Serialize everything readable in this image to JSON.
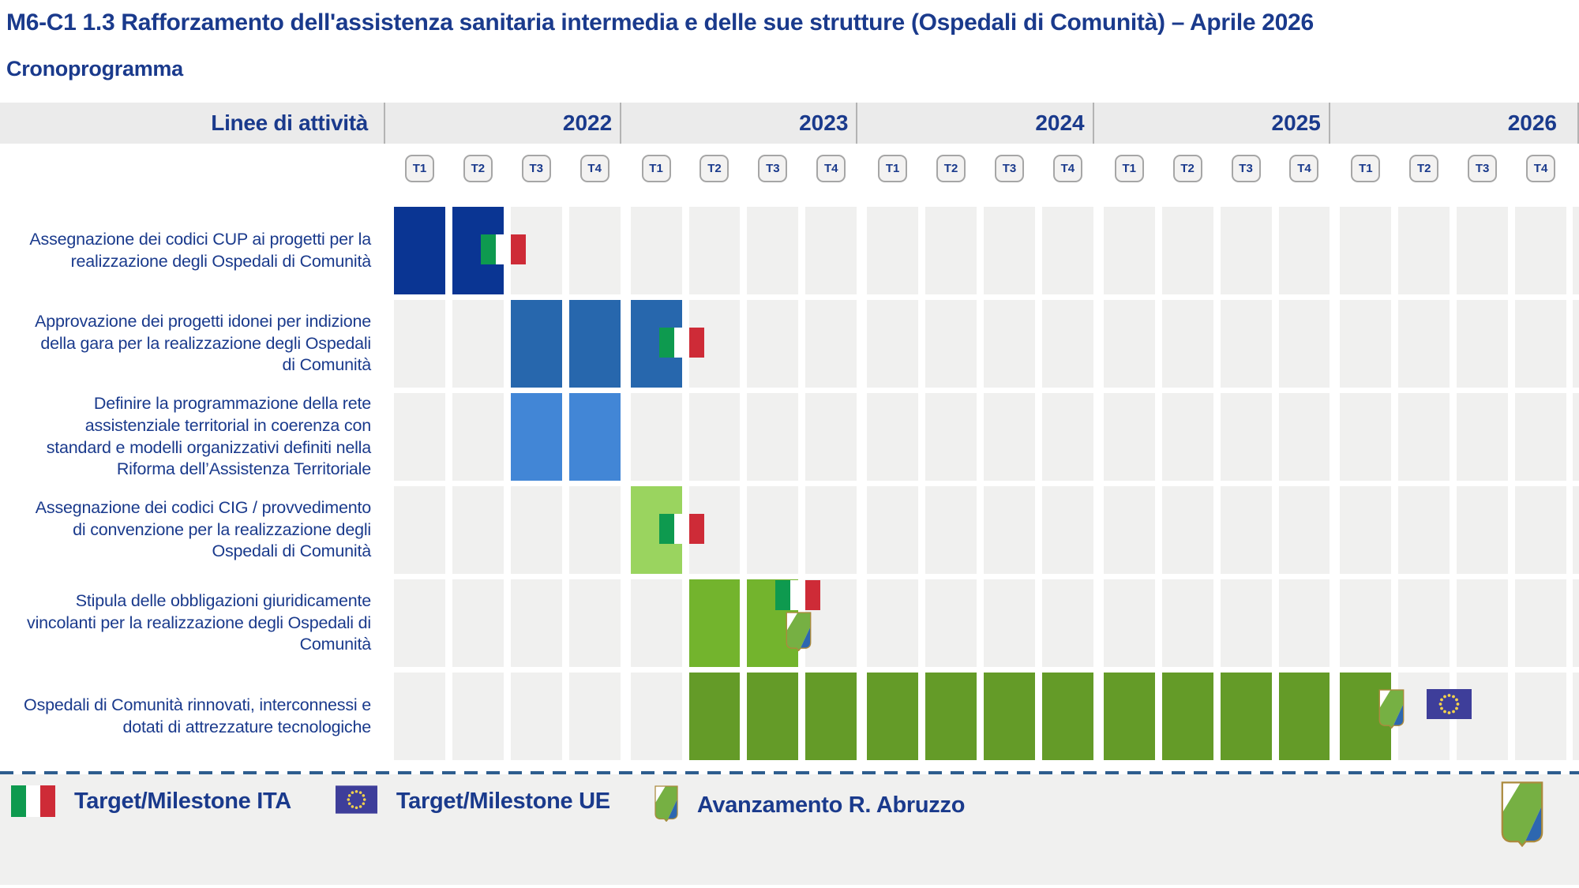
{
  "title": "M6-C1 1.3 Rafforzamento dell'assistenza sanitaria intermedia e delle sue strutture (Ospedali di Comunità) – Aprile 2026",
  "subtitle": "Cronoprogramma",
  "table": {
    "corner_label": "Linee di attività",
    "years": [
      "2022",
      "2023",
      "2024",
      "2025",
      "2026"
    ],
    "quarters": [
      "T1",
      "T2",
      "T3",
      "T4"
    ]
  },
  "legend": {
    "items": [
      {
        "icon": "italy-flag-icon",
        "label": "Target/Milestone ITA"
      },
      {
        "icon": "eu-flag-icon",
        "label": "Target/Milestone UE"
      },
      {
        "icon": "abruzzo-progress-icon",
        "label": "Avanzamento R. Abruzzo"
      }
    ],
    "corner_logo": "abruzzo-coat-of-arms"
  },
  "colors": {
    "text_navy": "#1a3a8c",
    "empty_cell": "#f0f0ef",
    "header_band": "#ebebeb",
    "separator_dash": "#2d5d8e",
    "italy_green": "#0e9a4f",
    "italy_red": "#ce2b37",
    "eu_blue": "#3e3e9a",
    "eu_star_yellow": "#f5d34b",
    "abruzzo_green": "#76b043",
    "abruzzo_blue": "#2d67b0"
  },
  "chart_data": {
    "type": "gantt",
    "title": "Cronoprogramma",
    "x_years": [
      "2022",
      "2023",
      "2024",
      "2025",
      "2026"
    ],
    "x_quarters_per_year": [
      "T1",
      "T2",
      "T3",
      "T4"
    ],
    "milestone_types": {
      "ITA": "Target/Milestone ITA",
      "UE": "Target/Milestone UE",
      "ABR": "Avanzamento R. Abruzzo"
    },
    "rows": [
      {
        "label": "Assegnazione dei codici CUP ai progetti per la realizzazione degli Ospedali di Comunità",
        "color": "#0a3593",
        "active_quarters": [
          "2022-T1",
          "2022-T2"
        ],
        "milestones": [
          {
            "type": "ITA",
            "at_end_of": "2022-T2",
            "valign": "middle"
          }
        ]
      },
      {
        "label": "Approvazione dei progetti idonei per indizione della gara per la realizzazione degli Ospedali di Comunità",
        "color": "#2767ad",
        "active_quarters": [
          "2022-T3",
          "2022-T4",
          "2023-T1"
        ],
        "milestones": [
          {
            "type": "ITA",
            "at_end_of": "2023-T1",
            "valign": "middle"
          }
        ]
      },
      {
        "label": "Definire la programmazione della rete assistenziale territorial in coerenza con standard e modelli organizzativi definiti nella Riforma dell’Assistenza Territoriale",
        "color": "#4286d6",
        "active_quarters": [
          "2022-T3",
          "2022-T4"
        ],
        "milestones": []
      },
      {
        "label": "Assegnazione dei codici CIG / provvedimento di convenzione per la realizzazione degli Ospedali di Comunità",
        "color": "#9ad45f",
        "active_quarters": [
          "2023-T1"
        ],
        "milestones": [
          {
            "type": "ITA",
            "at_end_of": "2023-T1",
            "valign": "middle"
          }
        ]
      },
      {
        "label": "Stipula delle obbligazioni giuridicamente vincolanti per la realizzazione degli Ospedali di Comunità",
        "color": "#73b42d",
        "active_quarters": [
          "2023-T2",
          "2023-T3"
        ],
        "milestones": [
          {
            "type": "ITA",
            "at_end_of": "2023-T3",
            "valign": "top"
          },
          {
            "type": "ABR",
            "at_end_of": "2023-T3",
            "valign": "below"
          }
        ]
      },
      {
        "label": "Ospedali di Comunità rinnovati, interconnessi e dotati di attrezzature tecnologiche",
        "color": "#649b28",
        "active_quarters": [
          "2023-T2",
          "2023-T3",
          "2023-T4",
          "2024-T1",
          "2024-T2",
          "2024-T3",
          "2024-T4",
          "2025-T1",
          "2025-T2",
          "2025-T3",
          "2025-T4",
          "2026-T1"
        ],
        "milestones": [
          {
            "type": "ABR",
            "at_end_of": "2026-T1",
            "valign": "upper"
          },
          {
            "type": "UE",
            "at_end_of": "2026-T2",
            "valign": "upper"
          }
        ]
      }
    ]
  }
}
